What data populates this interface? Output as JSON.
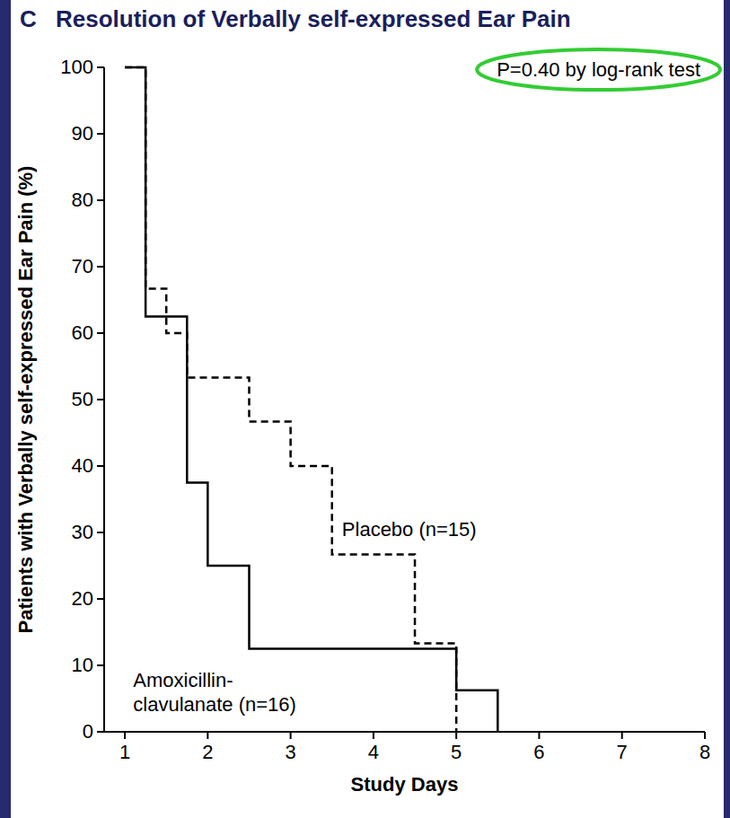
{
  "chart_data": {
    "type": "step",
    "panel": "C",
    "title": "Resolution of Verbally self-expressed Ear Pain",
    "x_label": "Study Days",
    "y_label": "Patients with Verbally self-expressed Ear Pain (%)",
    "annotation": "P=0.40 by log-rank test",
    "xlim": [
      0.75,
      8
    ],
    "xticks": [
      1,
      2,
      3,
      4,
      5,
      6,
      7,
      8
    ],
    "ylim": [
      0,
      100
    ],
    "yticks": [
      0,
      10,
      20,
      30,
      40,
      50,
      60,
      70,
      80,
      90,
      100
    ],
    "grid": false,
    "series": [
      {
        "name": "Amoxicillin-clavulanate (n=16)",
        "color": "#000000",
        "line_style": "solid",
        "x": [
          1,
          1.25,
          1.75,
          2,
          2.5,
          5,
          5.5
        ],
        "values": [
          100,
          62.5,
          37.5,
          25,
          12.5,
          6.25,
          0
        ]
      },
      {
        "name": "Placebo (n=15)",
        "color": "#000000",
        "line_style": "dashed",
        "x": [
          1,
          1.25,
          1.5,
          1.75,
          2.5,
          3,
          3.5,
          4.5,
          5
        ],
        "values": [
          100,
          66.7,
          60,
          53.3,
          46.7,
          40,
          26.7,
          13.3,
          0
        ]
      }
    ]
  }
}
